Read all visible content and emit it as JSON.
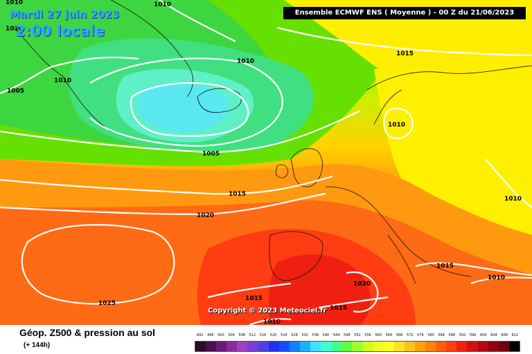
{
  "header": {
    "date": "Mardi 27 juin 2023",
    "time": "2:00 locale",
    "run": "Ensemble ECMWF ENS  ( Moyenne )  -  00 Z du 21/06/2023"
  },
  "footer": {
    "parameter": "Géop. Z500 & pression au sol",
    "lead_time": "(+ 144h)",
    "copyright": "Copyright © 2023 Meteociel.fr"
  },
  "isobars": [
    {
      "label": "1010"
    },
    {
      "label": "1010"
    },
    {
      "label": "1010"
    },
    {
      "label": "1010"
    },
    {
      "label": "1015"
    },
    {
      "label": "1010"
    },
    {
      "label": "1005"
    },
    {
      "label": "1005"
    },
    {
      "label": "1010"
    },
    {
      "label": "1015"
    },
    {
      "label": "1020"
    },
    {
      "label": "1010"
    },
    {
      "label": "1025"
    },
    {
      "label": "1015"
    },
    {
      "label": "1020"
    },
    {
      "label": "1015"
    },
    {
      "label": "1015"
    },
    {
      "label": "1010"
    },
    {
      "label": "1010"
    }
  ],
  "legend": {
    "levels": [
      "492",
      "496",
      "500",
      "504",
      "508",
      "512",
      "516",
      "520",
      "524",
      "528",
      "532",
      "536",
      "540",
      "544",
      "548",
      "552",
      "556",
      "560",
      "564",
      "568",
      "572",
      "576",
      "580",
      "584",
      "588",
      "592",
      "596",
      "600",
      "604",
      "608",
      "612"
    ],
    "colors": [
      "#2a0a2a",
      "#4a1050",
      "#6a1a7a",
      "#8a2aa0",
      "#a040c0",
      "#7a40d0",
      "#5040e0",
      "#2030f0",
      "#1050ff",
      "#1080ff",
      "#20b0ff",
      "#40e0ff",
      "#40ffd0",
      "#40ff90",
      "#60ff40",
      "#a0ff30",
      "#d0ff20",
      "#f0ff20",
      "#ffff20",
      "#ffe020",
      "#ffc020",
      "#ffa010",
      "#ff8010",
      "#ff6010",
      "#ff4010",
      "#f02010",
      "#d01010",
      "#b00810",
      "#900410",
      "#700210",
      "#000000"
    ]
  }
}
